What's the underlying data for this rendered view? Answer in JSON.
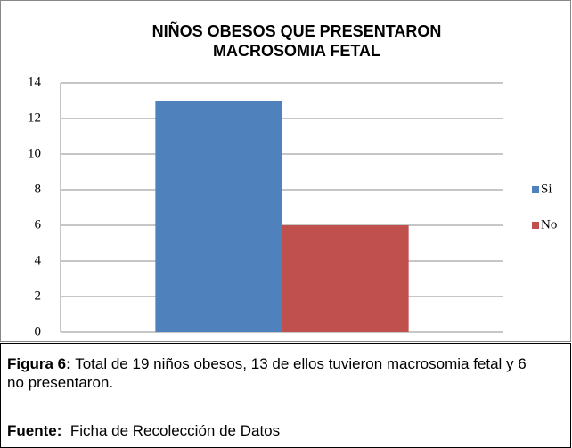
{
  "chart_data": {
    "type": "bar",
    "title": "NIÑOS OBESOS QUE PRESENTARON MACROSOMIA FETAL",
    "categories": [
      null
    ],
    "series": [
      {
        "name": "Si",
        "color": "#4f81bd",
        "values": [
          13
        ]
      },
      {
        "name": "No",
        "color": "#c0504d",
        "values": [
          6
        ]
      }
    ],
    "ylim": [
      0,
      14
    ],
    "yticks": [
      0,
      2,
      4,
      6,
      8,
      10,
      12,
      14
    ],
    "grid": true,
    "legend": "right"
  },
  "caption": {
    "label": "Figura 6:",
    "text": "Total de 19 niños obesos, 13 de ellos  tuvieron macrosomia fetal  y 6 no presentaron."
  },
  "source": {
    "label": "Fuente:",
    "text": "Ficha de Recolección de Datos"
  }
}
